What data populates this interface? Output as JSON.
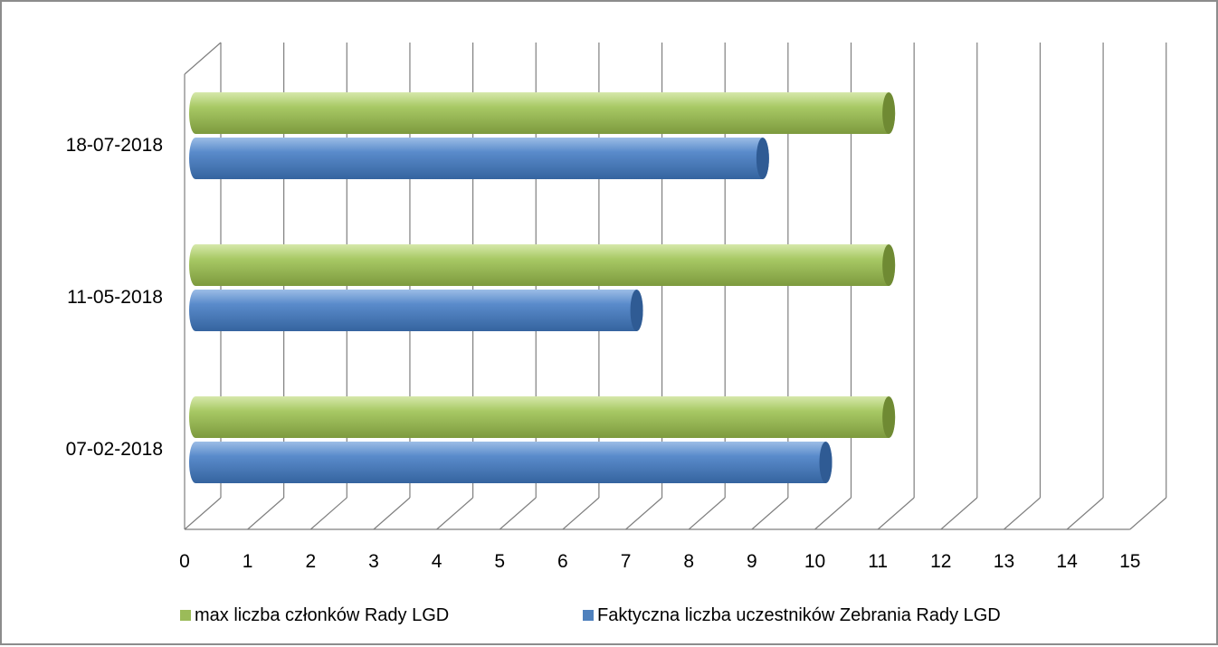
{
  "chart_data": {
    "type": "bar",
    "orientation": "horizontal",
    "style": "3d-cylinder",
    "categories": [
      "07-02-2018",
      "11-05-2018",
      "18-07-2018"
    ],
    "series": [
      {
        "name": "max liczba członków Rady LGD",
        "color": "#9bbb59",
        "values": [
          11,
          11,
          11
        ]
      },
      {
        "name": "Faktyczna liczba uczestników Zebrania Rady LGD",
        "color": "#4f81bd",
        "values": [
          10,
          7,
          9
        ]
      }
    ],
    "xlim": [
      0,
      15
    ],
    "x_ticks": [
      "0",
      "1",
      "2",
      "3",
      "4",
      "5",
      "6",
      "7",
      "8",
      "9",
      "10",
      "11",
      "12",
      "13",
      "14",
      "15"
    ],
    "grid": true,
    "legend_position": "bottom"
  }
}
